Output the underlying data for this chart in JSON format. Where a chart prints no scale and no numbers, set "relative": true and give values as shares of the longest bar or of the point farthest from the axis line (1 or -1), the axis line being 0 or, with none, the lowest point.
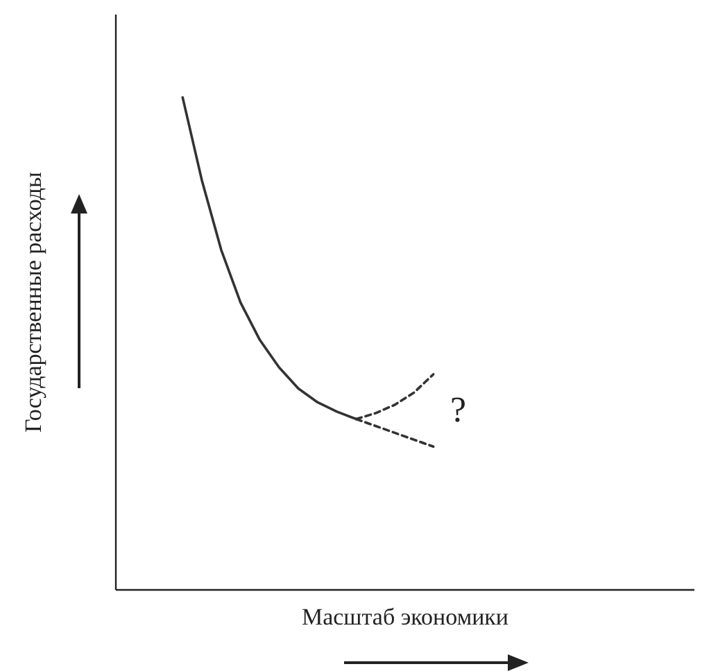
{
  "chart_data": {
    "type": "line",
    "relative": true,
    "xlabel": "Масштаб экономики",
    "ylabel": "Государственные расходы",
    "categories": [
      null,
      null,
      null,
      null,
      null,
      null,
      null,
      null,
      null,
      null,
      null,
      null,
      null,
      null,
      null,
      null,
      null,
      null,
      null,
      null,
      null,
      null,
      null,
      null,
      null,
      null,
      null,
      null,
      null,
      null
    ],
    "series": [
      {
        "color": "#333333",
        "line_style": "solid",
        "values": [
          null,
          null,
          null,
          1.0,
          0.831,
          0.69,
          0.583,
          0.507,
          0.451,
          0.408,
          0.38,
          0.361,
          0.346,
          null,
          null,
          null,
          null,
          null,
          null,
          null,
          null,
          null,
          null,
          null,
          null,
          null,
          null,
          null,
          null,
          null
        ]
      },
      {
        "color": "#333333",
        "line_style": "dashed",
        "values": [
          null,
          null,
          null,
          null,
          null,
          null,
          null,
          null,
          null,
          null,
          null,
          null,
          0.346,
          0.358,
          0.375,
          0.4,
          0.437,
          null,
          null,
          null,
          null,
          null,
          null,
          null,
          null,
          null,
          null,
          null,
          null,
          null
        ]
      },
      {
        "color": "#333333",
        "line_style": "dashed",
        "values": [
          null,
          null,
          null,
          null,
          null,
          null,
          null,
          null,
          null,
          null,
          null,
          null,
          0.346,
          0.332,
          0.318,
          0.304,
          0.29,
          null,
          null,
          null,
          null,
          null,
          null,
          null,
          null,
          null,
          null,
          null,
          null,
          null
        ]
      }
    ],
    "annotations": [
      "?"
    ]
  }
}
